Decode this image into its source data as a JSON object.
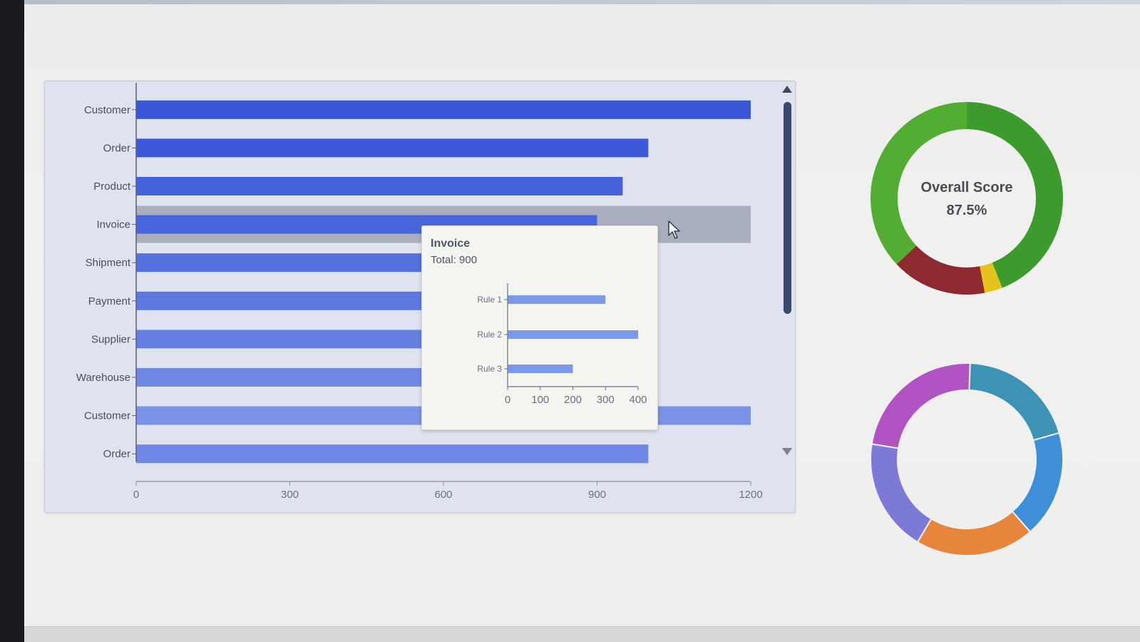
{
  "chart_data": [
    {
      "type": "bar",
      "orientation": "horizontal",
      "categories": [
        "Customer",
        "Order",
        "Product",
        "Invoice",
        "Shipment",
        "Payment",
        "Supplier",
        "Warehouse",
        "Customer",
        "Order"
      ],
      "values": [
        1200,
        1000,
        950,
        900,
        880,
        850,
        820,
        800,
        1200,
        1000
      ],
      "xlim": [
        0,
        1200
      ],
      "xticks": [
        0,
        300,
        600,
        900,
        1200
      ],
      "highlighted": "Invoice",
      "bar_color": "#3f5ad8",
      "grid": false
    },
    {
      "type": "bar",
      "orientation": "horizontal",
      "categories": [
        "Rule 1",
        "Rule 2",
        "Rule 3"
      ],
      "values": [
        300,
        400,
        200
      ],
      "xlim": [
        0,
        400
      ],
      "xticks": [
        0,
        100,
        200,
        300,
        400
      ],
      "bar_color": "#7b98ea",
      "tooltip_title": "Invoice",
      "tooltip_total": "Total: 900"
    },
    {
      "type": "pie",
      "variant": "donut",
      "title": "Overall Score",
      "center_value": "87.5%",
      "slices": [
        {
          "value": 44,
          "color": "#3d9a2c"
        },
        {
          "value": 3,
          "color": "#e6c21c"
        },
        {
          "value": 16,
          "color": "#8c2a2f"
        },
        {
          "value": 37,
          "color": "#54ad33"
        }
      ]
    },
    {
      "type": "pie",
      "variant": "donut",
      "slices": [
        {
          "value": 20,
          "color": "#3d93b4"
        },
        {
          "value": 18,
          "color": "#3f8ed8"
        },
        {
          "value": 20,
          "color": "#e7863a"
        },
        {
          "value": 19,
          "color": "#7d79d6"
        },
        {
          "value": 23,
          "color": "#b253c4"
        }
      ]
    }
  ],
  "scrollbar": {
    "up_icon": "triangle-up-icon",
    "down_icon": "triangle-down-icon"
  },
  "cursor_icon": "mouse-pointer-icon"
}
